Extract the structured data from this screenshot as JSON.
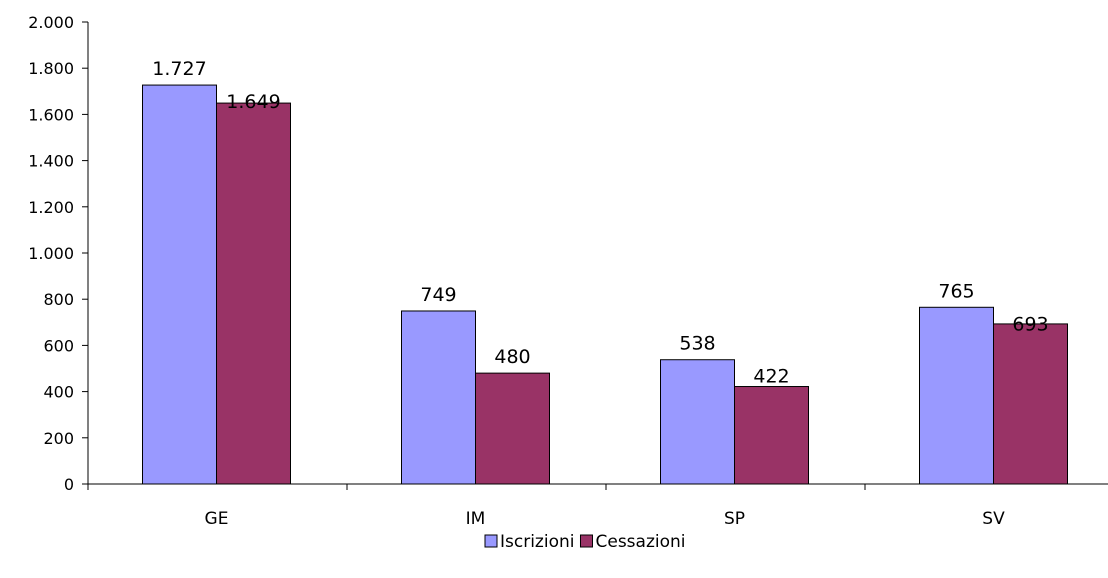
{
  "chart_data": {
    "type": "bar",
    "categories": [
      "GE",
      "IM",
      "SP",
      "SV"
    ],
    "series": [
      {
        "name": "Iscrizioni",
        "values": [
          1727,
          749,
          538,
          765
        ],
        "labels": [
          "1.727",
          "749",
          "538",
          "765"
        ],
        "color": "#9999ff"
      },
      {
        "name": "Cessazioni",
        "values": [
          1649,
          480,
          422,
          693
        ],
        "labels": [
          "1.649",
          "480",
          "422",
          "693"
        ],
        "color": "#993366"
      }
    ],
    "ylim": [
      0,
      2000
    ],
    "yticks": [
      0,
      200,
      400,
      600,
      800,
      1000,
      1200,
      1400,
      1600,
      1800,
      2000
    ],
    "ytick_labels": [
      "0",
      "200",
      "400",
      "600",
      "800",
      "1.000",
      "1.200",
      "1.400",
      "1.600",
      "1.800",
      "2.000"
    ],
    "grid": false,
    "legend_position": "bottom"
  }
}
